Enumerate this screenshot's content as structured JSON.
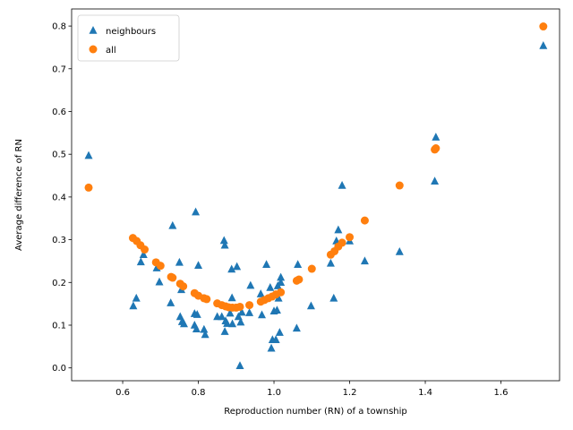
{
  "chart_data": {
    "type": "scatter",
    "xlabel": "Reproduction number (RN) of a township",
    "ylabel": "Average difference of RN",
    "xlim": [
      0.465,
      1.755
    ],
    "ylim": [
      -0.03,
      0.84
    ],
    "xticks": [
      0.6,
      0.8,
      1.0,
      1.2,
      1.4,
      1.6
    ],
    "xtick_labels": [
      "0.6",
      "0.8",
      "1.0",
      "1.2",
      "1.4",
      "1.6"
    ],
    "yticks": [
      0.0,
      0.1,
      0.2,
      0.3,
      0.4,
      0.5,
      0.6,
      0.7,
      0.8
    ],
    "ytick_labels": [
      "0.0",
      "0.1",
      "0.2",
      "0.3",
      "0.4",
      "0.5",
      "0.6",
      "0.7",
      "0.8"
    ],
    "grid": false,
    "legend_position": "top-left",
    "series": [
      {
        "name": "neighbours",
        "marker": "triangle",
        "color": "#1f77b4",
        "points": [
          [
            0.51,
            0.497
          ],
          [
            0.628,
            0.145
          ],
          [
            0.636,
            0.163
          ],
          [
            0.648,
            0.248
          ],
          [
            0.655,
            0.265
          ],
          [
            0.69,
            0.234
          ],
          [
            0.697,
            0.201
          ],
          [
            0.727,
            0.152
          ],
          [
            0.732,
            0.333
          ],
          [
            0.75,
            0.247
          ],
          [
            0.752,
            0.12
          ],
          [
            0.755,
            0.183
          ],
          [
            0.757,
            0.108
          ],
          [
            0.762,
            0.103
          ],
          [
            0.79,
            0.127
          ],
          [
            0.79,
            0.1
          ],
          [
            0.793,
            0.365
          ],
          [
            0.795,
            0.091
          ],
          [
            0.797,
            0.125
          ],
          [
            0.8,
            0.24
          ],
          [
            0.815,
            0.09
          ],
          [
            0.818,
            0.078
          ],
          [
            0.85,
            0.12
          ],
          [
            0.862,
            0.12
          ],
          [
            0.868,
            0.298
          ],
          [
            0.87,
            0.085
          ],
          [
            0.87,
            0.287
          ],
          [
            0.872,
            0.11
          ],
          [
            0.876,
            0.104
          ],
          [
            0.884,
            0.128
          ],
          [
            0.888,
            0.231
          ],
          [
            0.889,
            0.164
          ],
          [
            0.89,
            0.103
          ],
          [
            0.902,
            0.237
          ],
          [
            0.906,
            0.12
          ],
          [
            0.91,
            0.005
          ],
          [
            0.912,
            0.107
          ],
          [
            0.915,
            0.13
          ],
          [
            0.935,
            0.129
          ],
          [
            0.938,
            0.193
          ],
          [
            0.965,
            0.173
          ],
          [
            0.968,
            0.124
          ],
          [
            0.98,
            0.242
          ],
          [
            0.99,
            0.188
          ],
          [
            0.993,
            0.046
          ],
          [
            0.996,
            0.066
          ],
          [
            1.0,
            0.133
          ],
          [
            1.005,
            0.066
          ],
          [
            1.008,
            0.135
          ],
          [
            1.01,
            0.192
          ],
          [
            1.012,
            0.163
          ],
          [
            1.015,
            0.083
          ],
          [
            1.018,
            0.212
          ],
          [
            1.018,
            0.2
          ],
          [
            1.06,
            0.093
          ],
          [
            1.063,
            0.242
          ],
          [
            1.098,
            0.145
          ],
          [
            1.15,
            0.245
          ],
          [
            1.158,
            0.163
          ],
          [
            1.165,
            0.297
          ],
          [
            1.17,
            0.323
          ],
          [
            1.18,
            0.427
          ],
          [
            1.2,
            0.297
          ],
          [
            1.24,
            0.25
          ],
          [
            1.332,
            0.272
          ],
          [
            1.425,
            0.437
          ],
          [
            1.428,
            0.54
          ],
          [
            1.712,
            0.754
          ]
        ]
      },
      {
        "name": "all",
        "marker": "circle",
        "color": "#ff7f0e",
        "points": [
          [
            0.51,
            0.422
          ],
          [
            0.627,
            0.304
          ],
          [
            0.637,
            0.297
          ],
          [
            0.647,
            0.287
          ],
          [
            0.658,
            0.277
          ],
          [
            0.688,
            0.247
          ],
          [
            0.7,
            0.239
          ],
          [
            0.728,
            0.213
          ],
          [
            0.732,
            0.211
          ],
          [
            0.752,
            0.197
          ],
          [
            0.76,
            0.191
          ],
          [
            0.79,
            0.175
          ],
          [
            0.8,
            0.169
          ],
          [
            0.815,
            0.163
          ],
          [
            0.822,
            0.161
          ],
          [
            0.85,
            0.151
          ],
          [
            0.862,
            0.147
          ],
          [
            0.872,
            0.144
          ],
          [
            0.88,
            0.142
          ],
          [
            0.89,
            0.141
          ],
          [
            0.9,
            0.141
          ],
          [
            0.91,
            0.143
          ],
          [
            0.935,
            0.147
          ],
          [
            0.965,
            0.155
          ],
          [
            0.975,
            0.159
          ],
          [
            0.985,
            0.163
          ],
          [
            0.995,
            0.167
          ],
          [
            1.005,
            0.172
          ],
          [
            1.018,
            0.177
          ],
          [
            1.06,
            0.204
          ],
          [
            1.066,
            0.207
          ],
          [
            1.1,
            0.232
          ],
          [
            1.15,
            0.265
          ],
          [
            1.16,
            0.273
          ],
          [
            1.17,
            0.284
          ],
          [
            1.18,
            0.293
          ],
          [
            1.2,
            0.306
          ],
          [
            1.24,
            0.345
          ],
          [
            1.332,
            0.427
          ],
          [
            1.425,
            0.511
          ],
          [
            1.428,
            0.514
          ],
          [
            1.712,
            0.799
          ]
        ]
      }
    ]
  }
}
